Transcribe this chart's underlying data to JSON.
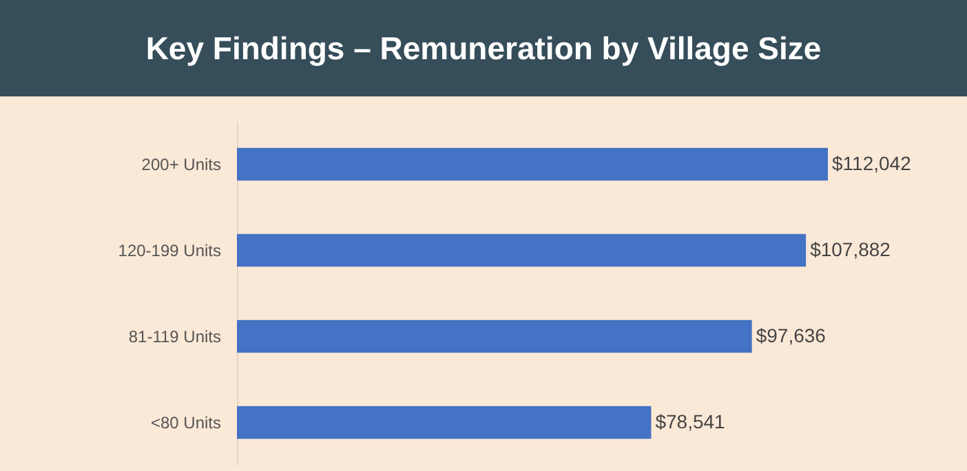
{
  "chart_data": {
    "type": "bar",
    "title": "Key Findings – Remuneration by Village Size",
    "orientation": "horizontal",
    "categories": [
      "200+ Units",
      "120-199 Units",
      "81-119 Units",
      "<80 Units"
    ],
    "values": [
      112042,
      107882,
      97636,
      78541
    ],
    "value_labels": [
      "$112,042",
      "$107,882",
      "$97,636",
      "$78,541"
    ],
    "color": "#4472c4"
  }
}
